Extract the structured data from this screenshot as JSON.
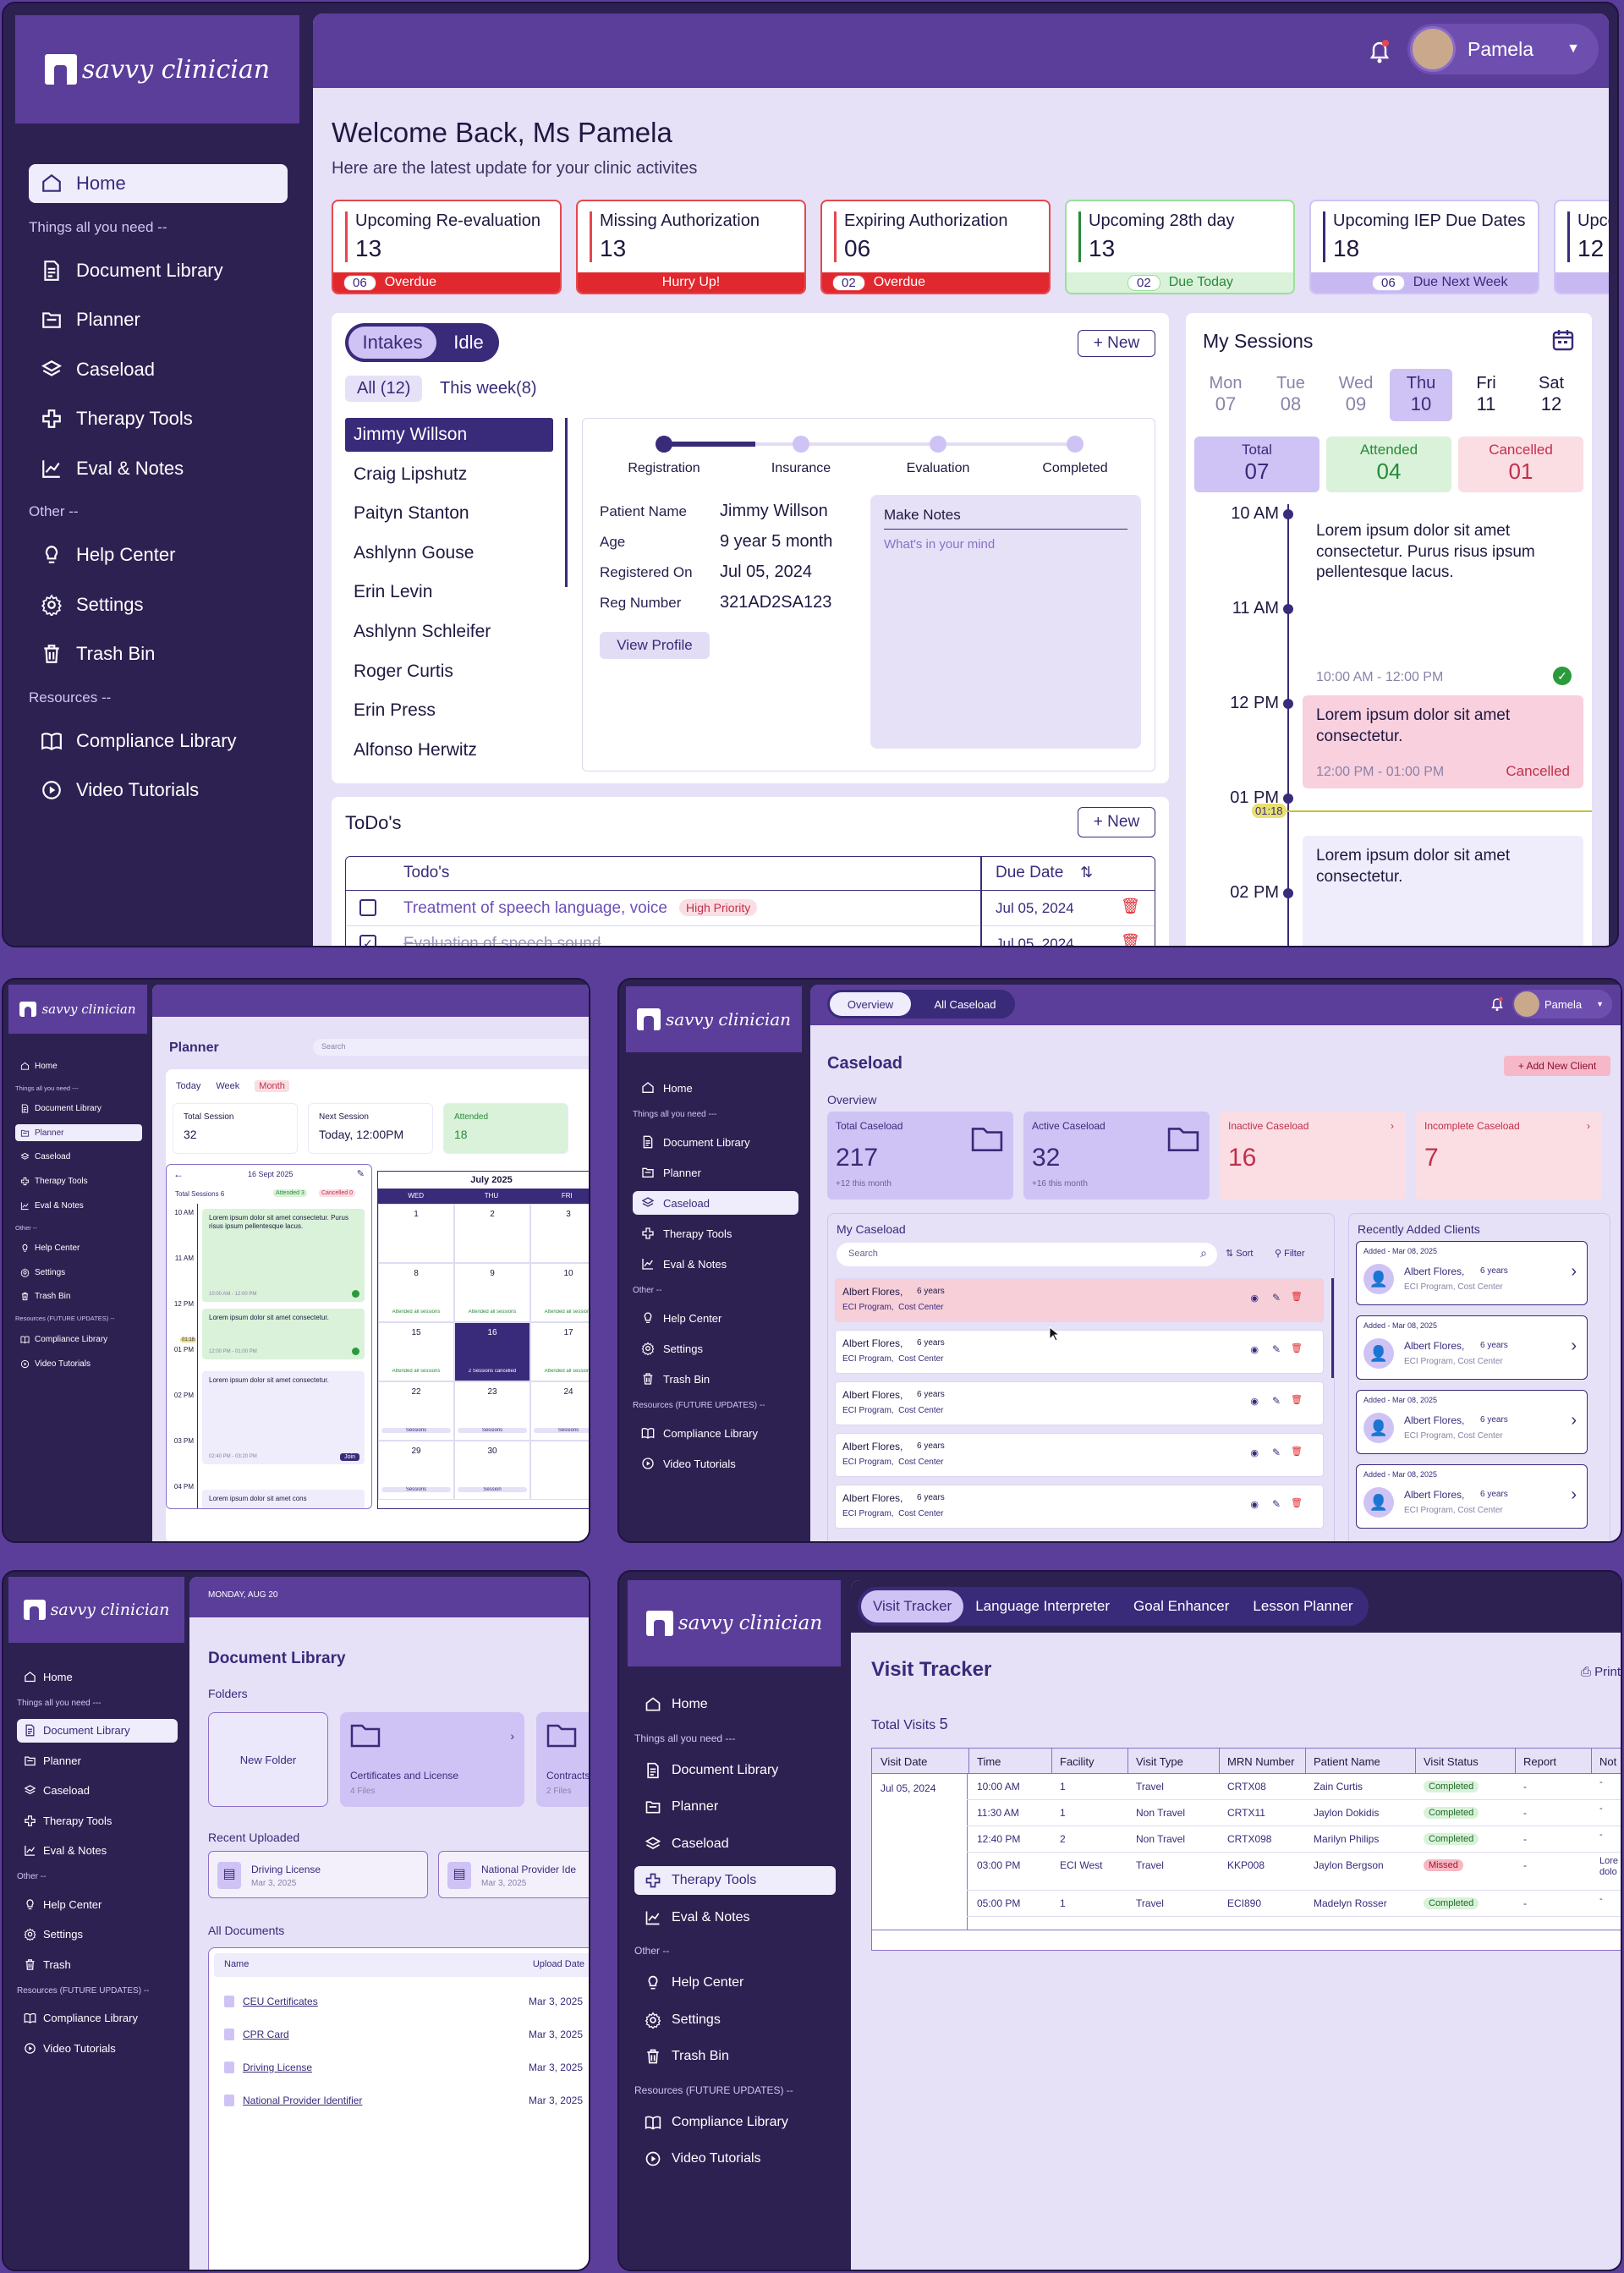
{
  "brand": "savvy clinician",
  "nav": {
    "home": "Home",
    "things": "Things all you need --",
    "things_short": "Things all you need ---",
    "doc": "Document Library",
    "planner": "Planner",
    "caseload": "Caseload",
    "therapy": "Therapy Tools",
    "eval": "Eval & Notes",
    "other": "Other --",
    "help": "Help Center",
    "settings": "Settings",
    "trash": "Trash Bin",
    "trash_short": "Trash",
    "resources": "Resources --",
    "resources_future": "Resources (FUTURE UPDATES) --",
    "compliance": "Compliance Library",
    "video": "Video Tutorials"
  },
  "dashboard": {
    "user": "Pamela",
    "welcome": "Welcome Back, Ms Pamela",
    "subtitle": "Here are the latest update for your clinic activites",
    "stats": [
      {
        "title": "Upcoming Re-evaluation",
        "value": "13",
        "badge": "06",
        "note": "Overdue",
        "kind": "red"
      },
      {
        "title": "Missing Authorization",
        "value": "13",
        "badge": "",
        "note": "Hurry Up!",
        "kind": "red"
      },
      {
        "title": "Expiring Authorization",
        "value": "06",
        "badge": "02",
        "note": "Overdue",
        "kind": "red"
      },
      {
        "title": "Upcoming 28th day",
        "value": "13",
        "badge": "02",
        "note": "Due Today",
        "kind": "green"
      },
      {
        "title": "Upcoming IEP Due Dates",
        "value": "18",
        "badge": "06",
        "note": "Due Next Week",
        "kind": "purple"
      },
      {
        "title": "Upco",
        "value": "12",
        "badge": "",
        "note": "",
        "kind": "purple"
      }
    ],
    "tab_intakes": "Intakes",
    "tab_idle": "Idle",
    "new": "+ New",
    "filter_all": "All (12)",
    "filter_week": "This week(8)",
    "patients": [
      "Jimmy Willson",
      "Craig Lipshutz",
      "Paityn Stanton",
      "Ashlynn Gouse",
      "Erin Levin",
      "Ashlynn Schleifer",
      "Roger Curtis",
      "Erin Press",
      "Alfonso Herwitz"
    ],
    "steps": [
      "Registration",
      "Insurance",
      "Evaluation",
      "Completed"
    ],
    "details": [
      {
        "k": "Patient Name",
        "v": "Jimmy Willson"
      },
      {
        "k": "Age",
        "v": "9 year 5 month"
      },
      {
        "k": "Registered On",
        "v": "Jul 05, 2024"
      },
      {
        "k": "Reg Number",
        "v": "321AD2SA123"
      }
    ],
    "view_profile": "View Profile",
    "notes_title": "Make Notes",
    "notes_placeholder": "What's in your mind",
    "todo_title": "ToDo's",
    "todo_col": "Todo's",
    "due_col": "Due Date",
    "todos": [
      {
        "text": "Treatment of speech language, voice",
        "tag": "High Priority",
        "due": "Jul 05, 2024",
        "done": false
      },
      {
        "text": "Evaluation of speech sound",
        "tag": "",
        "due": "Jul 05, 2024",
        "done": true
      }
    ],
    "sessions_title": "My Sessions",
    "days": [
      {
        "d": "Mon",
        "n": "07"
      },
      {
        "d": "Tue",
        "n": "08"
      },
      {
        "d": "Wed",
        "n": "09"
      },
      {
        "d": "Thu",
        "n": "10"
      },
      {
        "d": "Fri",
        "n": "11"
      },
      {
        "d": "Sat",
        "n": "12"
      }
    ],
    "totals": [
      {
        "label": "Total",
        "value": "07"
      },
      {
        "label": "Attended",
        "value": "04"
      },
      {
        "label": "Cancelled",
        "value": "01"
      }
    ],
    "hours": [
      "10 AM",
      "11 AM",
      "12 PM",
      "01 PM",
      "02 PM"
    ],
    "now": "01:18",
    "events": [
      {
        "text": "Lorem ipsum dolor sit amet consectetur. Purus risus ipsum pellentesque lacus.",
        "time": "10:00 AM - 12:00 PM",
        "status": ""
      },
      {
        "text": "Lorem ipsum dolor sit amet consectetur.",
        "time": "12:00 PM - 01:00 PM",
        "status": "Cancelled"
      },
      {
        "text": "Lorem ipsum dolor sit amet consectetur.",
        "time": "",
        "status": ""
      }
    ]
  },
  "planner": {
    "title": "Planner",
    "search": "Search",
    "views": [
      "Today",
      "Week",
      "Month"
    ],
    "total_label": "Total Session",
    "total": "32",
    "next_label": "Next Session",
    "next": "Today, 12:00PM",
    "attended_label": "Attended",
    "attended": "18",
    "popup_date": "16 Sept 2025",
    "popup_total": "Total Sessions 6",
    "popup_att": "Attended 3",
    "popup_can": "Cancelled 0",
    "month": "July 2025",
    "dow": [
      "WED",
      "THU",
      "FRI"
    ],
    "cells": [
      {
        "n": "1",
        "t": ""
      },
      {
        "n": "2",
        "t": ""
      },
      {
        "n": "3",
        "t": ""
      },
      {
        "n": "8",
        "t": "Attended all sessions"
      },
      {
        "n": "9",
        "t": "Attended all sessions"
      },
      {
        "n": "10",
        "t": "Attended all sessions"
      },
      {
        "n": "15",
        "t": "Attended all sessions"
      },
      {
        "n": "16",
        "t": "2 Sessions cancelled"
      },
      {
        "n": "17",
        "t": "Attended all sessions"
      },
      {
        "n": "22",
        "t": "Sessions"
      },
      {
        "n": "23",
        "t": "Sessions"
      },
      {
        "n": "24",
        "t": "Sessions"
      },
      {
        "n": "29",
        "t": "Sessions"
      },
      {
        "n": "30",
        "t": "Session"
      },
      {
        "n": "",
        "t": ""
      }
    ],
    "hours": [
      "10 AM",
      "11 AM",
      "12 PM",
      "01 PM",
      "02 PM",
      "03 PM",
      "04 PM"
    ],
    "ev": [
      "Lorem ipsum dolor sit amet consectetur. Purus risus ipsum pellentesque lacus.",
      "Lorem ipsum dolor sit amet consectetur.",
      "Lorem ipsum dolor sit amet consectetur.",
      "Lorem ipsum dolor sit amet cons"
    ],
    "ev_times": [
      "10:00 AM - 12:00 PM",
      "12:00 PM - 01:00 PM",
      "02:40 PM - 03:20 PM"
    ],
    "join": "Join",
    "now": "01:18"
  },
  "caseload": {
    "tab_overview": "Overview",
    "tab_all": "All Caseload",
    "user": "Pamela",
    "title": "Caseload",
    "add": "+ Add New Client",
    "overview": "Overview",
    "stats": [
      {
        "label": "Total Caseload",
        "value": "217",
        "note": "+12 this month"
      },
      {
        "label": "Active Caseload",
        "value": "32",
        "note": "+16 this month"
      },
      {
        "label": "Inactive Caseload",
        "value": "16",
        "note": ""
      },
      {
        "label": "Incomplete Caseload",
        "value": "7",
        "note": ""
      }
    ],
    "my": "My Caseload",
    "search": "Search",
    "sort": "Sort",
    "filter": "Filter",
    "rows": [
      {
        "name": "Albert Flores,",
        "age": "6 years",
        "prog": "ECI Program,  Cost Center"
      },
      {
        "name": "Albert Flores,",
        "age": "6 years",
        "prog": "ECI Program,  Cost Center"
      },
      {
        "name": "Albert Flores,",
        "age": "6 years",
        "prog": "ECI Program,  Cost Center"
      },
      {
        "name": "Albert Flores,",
        "age": "6 years",
        "prog": "ECI Program,  Cost Center"
      },
      {
        "name": "Albert Flores,",
        "age": "6 years",
        "prog": "ECI Program,  Cost Center"
      }
    ],
    "recent": "Recently Added Clients",
    "clients": [
      {
        "added": "Added - Mar 08, 2025",
        "name": "Albert Flores,",
        "age": "6 years",
        "prog": "ECI Program, Cost Center"
      },
      {
        "added": "Added - Mar 08, 2025",
        "name": "Albert Flores,",
        "age": "6 years",
        "prog": "ECI Program, Cost Center"
      },
      {
        "added": "Added - Mar 08, 2025",
        "name": "Albert Flores,",
        "age": "6 years",
        "prog": "ECI Program, Cost Center"
      },
      {
        "added": "Added - Mar 08, 2025",
        "name": "Albert Flores,",
        "age": "6 years",
        "prog": "ECI Program, Cost Center"
      }
    ]
  },
  "doclib": {
    "date": "MONDAY, AUG 20",
    "title": "Document Library",
    "folders": "Folders",
    "new_folder": "New Folder",
    "f1": "Certificates and License",
    "f1n": "4 Files",
    "f2": "Contracts",
    "f2n": "2 Files",
    "recent": "Recent Uploaded",
    "r1": "Driving License",
    "r1d": "Mar 3, 2025",
    "r2": "National Provider Ide",
    "r2d": "Mar 3, 2025",
    "all": "All Documents",
    "col_name": "Name",
    "col_date": "Upload Date",
    "docs": [
      {
        "name": "CEU Certificates",
        "date": "Mar 3, 2025"
      },
      {
        "name": "CPR Card",
        "date": "Mar 3, 2025"
      },
      {
        "name": "Driving License",
        "date": "Mar 3, 2025"
      },
      {
        "name": "National Provider Identifier",
        "date": "Mar 3, 2025"
      }
    ]
  },
  "visit": {
    "tabs": [
      "Visit Tracker",
      "Language Interpreter",
      "Goal Enhancer",
      "Lesson Planner"
    ],
    "title": "Visit Tracker",
    "print": "Print",
    "total_label": "Total Visits",
    "total": "5",
    "cols": [
      "Visit Date",
      "Time",
      "Facility",
      "Visit Type",
      "MRN Number",
      "Patient Name",
      "Visit Status",
      "Report",
      "Not"
    ],
    "date": "Jul 05, 2024",
    "rows": [
      {
        "time": "10:00 AM",
        "fac": "1",
        "type": "Travel",
        "mrn": "CRTX08",
        "pat": "Zain Curtis",
        "status": "Completed",
        "rep": "-",
        "note": "-"
      },
      {
        "time": "11:30 AM",
        "fac": "1",
        "type": "Non Travel",
        "mrn": "CRTX11",
        "pat": "Jaylon Dokidis",
        "status": "Completed",
        "rep": "-",
        "note": "-"
      },
      {
        "time": "12:40 PM",
        "fac": "2",
        "type": "Non Travel",
        "mrn": "CRTX098",
        "pat": "Marilyn Philips",
        "status": "Completed",
        "rep": "-",
        "note": "-"
      },
      {
        "time": "03:00 PM",
        "fac": "ECI West",
        "type": "Travel",
        "mrn": "KKP008",
        "pat": "Jaylon Bergson",
        "status": "Missed",
        "rep": "-",
        "note": "Lore dolo"
      },
      {
        "time": "05:00 PM",
        "fac": "1",
        "type": "Travel",
        "mrn": "ECI890",
        "pat": "Madelyn Rosser",
        "status": "Completed",
        "rep": "-",
        "note": "-"
      }
    ]
  }
}
